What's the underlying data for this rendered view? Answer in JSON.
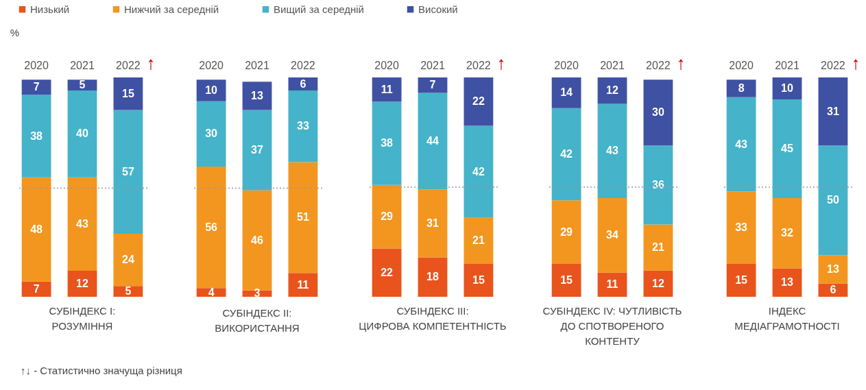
{
  "chart_data": [
    {
      "type": "bar",
      "stacked": true,
      "data_labels": true,
      "legend": "top",
      "tick_labels": "x",
      "ylabel": "%",
      "title": "СУБІНДЕКС I:\nРОЗУМІННЯ",
      "categories": [
        "2020",
        "2021",
        "2022"
      ],
      "series": [
        {
          "name": "Низький",
          "color": "#e8541c",
          "values": [
            7,
            12,
            5
          ]
        },
        {
          "name": "Нижчий за середній",
          "color": "#f3961f",
          "values": [
            48,
            43,
            24
          ]
        },
        {
          "name": "Вищий за середній",
          "color": "#45b3c9",
          "values": [
            38,
            40,
            57
          ]
        },
        {
          "name": "Високий",
          "color": "#3f51a3",
          "values": [
            7,
            5,
            15
          ]
        }
      ],
      "ref_lines": [
        {
          "axis": "y",
          "value": 50,
          "line_style": "dotted",
          "color": "#999999"
        }
      ],
      "annotations": [
        "↑"
      ]
    },
    {
      "type": "bar",
      "stacked": true,
      "data_labels": true,
      "legend": "top",
      "tick_labels": "x",
      "title": "СУБІНДЕКС II:\nВИКОРИСТАННЯ",
      "categories": [
        "2020",
        "2021",
        "2022"
      ],
      "series": [
        {
          "name": "Низький",
          "color": "#e8541c",
          "values": [
            4,
            3,
            11
          ]
        },
        {
          "name": "Нижчий за середній",
          "color": "#f3961f",
          "values": [
            56,
            46,
            51
          ]
        },
        {
          "name": "Вищий за середній",
          "color": "#45b3c9",
          "values": [
            30,
            37,
            33
          ]
        },
        {
          "name": "Високий",
          "color": "#3f51a3",
          "values": [
            10,
            13,
            6
          ]
        }
      ],
      "ref_lines": [
        {
          "axis": "y",
          "value": 50,
          "line_style": "dotted",
          "color": "#999999"
        }
      ]
    },
    {
      "type": "bar",
      "stacked": true,
      "data_labels": true,
      "legend": "top",
      "tick_labels": "x",
      "title": "СУБІНДЕКС III:\nЦИФРОВА КОМПЕТЕНТНІСТЬ",
      "categories": [
        "2020",
        "2021",
        "2022"
      ],
      "series": [
        {
          "name": "Низький",
          "color": "#e8541c",
          "values": [
            22,
            18,
            15
          ]
        },
        {
          "name": "Нижчий за середній",
          "color": "#f3961f",
          "values": [
            29,
            31,
            21
          ]
        },
        {
          "name": "Вищий за середній",
          "color": "#45b3c9",
          "values": [
            38,
            44,
            42
          ]
        },
        {
          "name": "Високий",
          "color": "#3f51a3",
          "values": [
            11,
            7,
            22
          ]
        }
      ],
      "ref_lines": [
        {
          "axis": "y",
          "value": 50,
          "line_style": "dotted",
          "color": "#999999"
        }
      ],
      "annotations": [
        "↑"
      ]
    },
    {
      "type": "bar",
      "stacked": true,
      "data_labels": true,
      "legend": "top",
      "tick_labels": "x",
      "title": "СУБІНДЕКС IV: ЧУТЛИВІСТЬ\nДО СПОТВОРЕНОГО\nКОНТЕНТУ",
      "categories": [
        "2020",
        "2021",
        "2022"
      ],
      "series": [
        {
          "name": "Низький",
          "color": "#e8541c",
          "values": [
            15,
            11,
            12
          ]
        },
        {
          "name": "Нижчий за середній",
          "color": "#f3961f",
          "values": [
            29,
            34,
            21
          ]
        },
        {
          "name": "Вищий за середній",
          "color": "#45b3c9",
          "values": [
            42,
            43,
            36
          ]
        },
        {
          "name": "Високий",
          "color": "#3f51a3",
          "values": [
            14,
            12,
            30
          ]
        }
      ],
      "ref_lines": [
        {
          "axis": "y",
          "value": 50,
          "line_style": "dotted",
          "color": "#999999"
        }
      ],
      "annotations": [
        "↑"
      ]
    },
    {
      "type": "bar",
      "stacked": true,
      "data_labels": true,
      "legend": "top",
      "tick_labels": "x",
      "title": "ІНДЕКС\nМЕДІАГРАМОТНОСТІ",
      "categories": [
        "2020",
        "2021",
        "2022"
      ],
      "series": [
        {
          "name": "Низький",
          "color": "#e8541c",
          "values": [
            15,
            13,
            6
          ]
        },
        {
          "name": "Нижчий за середній",
          "color": "#f3961f",
          "values": [
            33,
            32,
            13
          ]
        },
        {
          "name": "Вищий за середній",
          "color": "#45b3c9",
          "values": [
            43,
            45,
            50
          ]
        },
        {
          "name": "Високий",
          "color": "#3f51a3",
          "values": [
            8,
            10,
            31
          ]
        }
      ],
      "ref_lines": [
        {
          "axis": "y",
          "value": 50,
          "line_style": "dotted",
          "color": "#999999"
        }
      ],
      "annotations": [
        "↑"
      ]
    },
    {
      "type": "other",
      "annotations": [
        "↑↓ - Статистично значуща різниця"
      ]
    }
  ]
}
